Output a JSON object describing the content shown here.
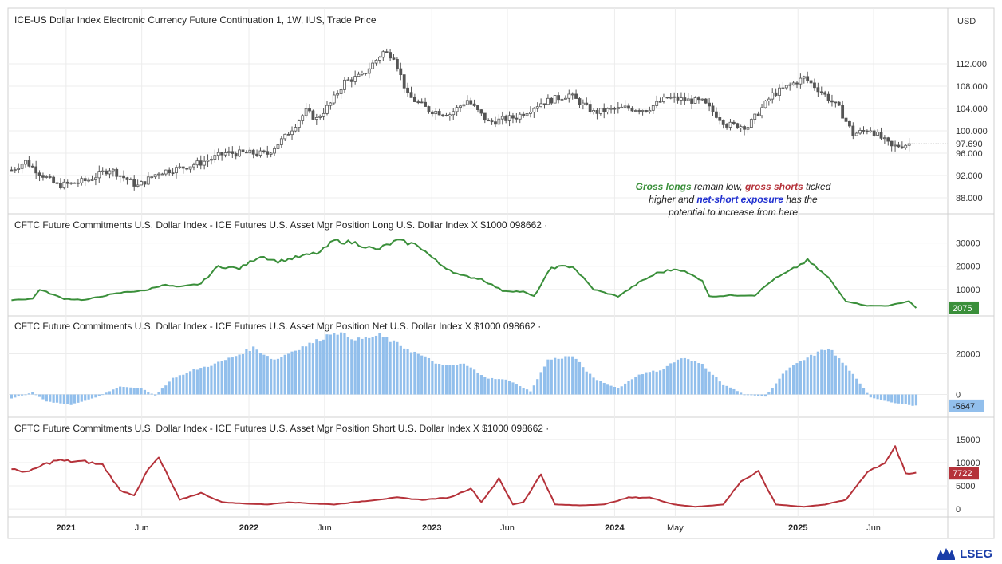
{
  "currency_button": "USD",
  "annotation": {
    "line1": [
      {
        "text": "Gross longs",
        "style": "green"
      },
      {
        "text": " remain low, ",
        "style": "plain"
      },
      {
        "text": "gross shorts",
        "style": "red"
      },
      {
        "text": " ticked",
        "style": "plain"
      }
    ],
    "line2": [
      {
        "text": "higher and ",
        "style": "plain"
      },
      {
        "text": "net-short exposure",
        "style": "blue"
      },
      {
        "text": " has the",
        "style": "plain"
      }
    ],
    "line3": [
      {
        "text": "potential to increase from here",
        "style": "plain"
      }
    ]
  },
  "logo_text": "LSEG",
  "colors": {
    "green": "#3a8f3a",
    "red": "#b5323a",
    "blue": "#1f2fd0",
    "bar": "#92bfec",
    "candle": "#555555",
    "grid": "#ececec"
  },
  "x_axis": {
    "ticks": [
      {
        "label": "2021",
        "date": "2021-01-01",
        "bold": true
      },
      {
        "label": "Jun",
        "date": "2021-06-01",
        "bold": false
      },
      {
        "label": "2022",
        "date": "2022-01-01",
        "bold": true
      },
      {
        "label": "Jun",
        "date": "2022-06-01",
        "bold": false
      },
      {
        "label": "2023",
        "date": "2023-01-01",
        "bold": true
      },
      {
        "label": "Jun",
        "date": "2023-06-01",
        "bold": false
      },
      {
        "label": "2024",
        "date": "2024-01-01",
        "bold": true
      },
      {
        "label": "May",
        "date": "2024-05-01",
        "bold": false
      },
      {
        "label": "2025",
        "date": "2025-01-01",
        "bold": true
      },
      {
        "label": "Jun",
        "date": "2025-06-01",
        "bold": false
      }
    ]
  },
  "chart_data": [
    {
      "type": "candlestick",
      "title": "ICE-US Dollar Index Electronic Currency Future Continuation 1, 1W, IUS, Trade Price",
      "ylim": [
        86,
        118
      ],
      "yticks": [
        "112.000",
        "108.000",
        "104.000",
        "100.000",
        "96.000",
        "92.000",
        "88.000"
      ],
      "last_value": "97.690",
      "x": [
        "2020-09-14",
        "2020-10-12",
        "2020-11-09",
        "2020-12-14",
        "2021-01-11",
        "2021-02-15",
        "2021-03-29",
        "2021-05-24",
        "2021-07-05",
        "2021-08-16",
        "2021-09-27",
        "2021-11-15",
        "2021-12-27",
        "2022-02-07",
        "2022-03-14",
        "2022-04-25",
        "2022-05-16",
        "2022-06-13",
        "2022-07-11",
        "2022-08-15",
        "2022-09-26",
        "2022-10-17",
        "2022-11-14",
        "2022-12-26",
        "2023-02-06",
        "2023-03-13",
        "2023-04-24",
        "2023-06-19",
        "2023-08-07",
        "2023-10-02",
        "2023-11-20",
        "2024-01-22",
        "2024-03-04",
        "2024-04-15",
        "2024-06-24",
        "2024-08-12",
        "2024-09-23",
        "2024-11-11",
        "2025-01-13",
        "2025-02-17",
        "2025-03-24",
        "2025-04-21",
        "2025-05-26",
        "2025-07-07",
        "2025-08-11"
      ],
      "close": [
        93.0,
        94.5,
        92.5,
        90.2,
        90.5,
        91.2,
        93.2,
        90.1,
        92.6,
        93.3,
        94.3,
        96.0,
        96.0,
        95.9,
        98.9,
        103.5,
        102.1,
        104.9,
        108.8,
        109.9,
        114.1,
        113.4,
        106.3,
        103.7,
        103.0,
        105.5,
        101.5,
        102.5,
        105.0,
        106.5,
        103.3,
        104.1,
        103.8,
        105.9,
        105.2,
        101.1,
        100.8,
        106.5,
        109.5,
        107.0,
        104.0,
        99.4,
        100.3,
        97.1,
        97.69
      ]
    },
    {
      "type": "line",
      "title": "CFTC Future Commitments U.S. Dollar Index - ICE Futures U.S. Asset Mgr Position Long U.S. Dollar Index X $1000 098662 ·",
      "ylim": [
        0,
        35000
      ],
      "yticks": [
        "30000",
        "20000",
        "10000"
      ],
      "last_value": "2075",
      "x": [
        "2020-09-14",
        "2020-10-26",
        "2020-11-09",
        "2020-12-28",
        "2021-02-08",
        "2021-03-22",
        "2021-05-03",
        "2021-06-07",
        "2021-07-12",
        "2021-08-16",
        "2021-09-27",
        "2021-11-01",
        "2021-12-13",
        "2022-01-24",
        "2022-02-28",
        "2022-04-11",
        "2022-05-23",
        "2022-06-20",
        "2022-08-01",
        "2022-09-12",
        "2022-10-24",
        "2022-12-05",
        "2023-01-16",
        "2023-02-27",
        "2023-04-10",
        "2023-05-22",
        "2023-07-03",
        "2023-07-24",
        "2023-08-28",
        "2023-10-09",
        "2023-11-20",
        "2024-01-08",
        "2024-02-19",
        "2024-03-25",
        "2024-05-06",
        "2024-06-24",
        "2024-07-08",
        "2024-08-26",
        "2024-10-07",
        "2024-11-11",
        "2024-12-16",
        "2025-01-20",
        "2025-03-03",
        "2025-04-07",
        "2025-05-19",
        "2025-06-30",
        "2025-08-11",
        "2025-08-25"
      ],
      "y": [
        5500,
        6000,
        10000,
        6000,
        5500,
        7500,
        9000,
        9500,
        12000,
        11000,
        12500,
        20000,
        19000,
        24500,
        22000,
        24000,
        26000,
        31000,
        30000,
        27000,
        31000,
        29000,
        21000,
        16000,
        14500,
        9500,
        9000,
        7000,
        19500,
        20000,
        10000,
        7000,
        13000,
        17000,
        19000,
        14000,
        7000,
        7500,
        7500,
        14000,
        18000,
        22500,
        15000,
        5000,
        3000,
        3000,
        5000,
        2075
      ]
    },
    {
      "type": "bar",
      "title": "CFTC Future Commitments U.S. Dollar Index - ICE Futures U.S. Asset Mgr Position Net U.S. Dollar Index X $1000 098662 ·",
      "ylim": [
        -10000,
        30000
      ],
      "yticks": [
        "20000",
        "0"
      ],
      "last_value": "-5647",
      "x": [
        "2020-09-14",
        "2020-10-26",
        "2020-11-23",
        "2021-01-11",
        "2021-03-01",
        "2021-04-19",
        "2021-05-31",
        "2021-06-28",
        "2021-08-02",
        "2021-09-13",
        "2021-10-25",
        "2021-12-06",
        "2022-01-10",
        "2022-02-21",
        "2022-04-04",
        "2022-05-23",
        "2022-06-20",
        "2022-08-08",
        "2022-09-19",
        "2022-10-31",
        "2022-12-12",
        "2023-01-23",
        "2023-03-06",
        "2023-04-24",
        "2023-06-05",
        "2023-07-17",
        "2023-08-21",
        "2023-10-09",
        "2023-11-20",
        "2024-01-08",
        "2024-02-19",
        "2024-04-01",
        "2024-05-13",
        "2024-06-24",
        "2024-08-05",
        "2024-09-16",
        "2024-10-28",
        "2024-12-09",
        "2025-01-20",
        "2025-03-03",
        "2025-04-14",
        "2025-05-26",
        "2025-07-07",
        "2025-08-25"
      ],
      "values": [
        -2000,
        1000,
        -3500,
        -5000,
        -1500,
        4000,
        3000,
        -500,
        8000,
        12000,
        15000,
        19000,
        23000,
        17000,
        22000,
        27000,
        31000,
        27000,
        29000,
        24000,
        19000,
        14000,
        15000,
        8000,
        7000,
        1500,
        17000,
        19000,
        8000,
        3000,
        10000,
        12000,
        18000,
        15000,
        5000,
        0,
        -1000,
        12000,
        18000,
        23000,
        12000,
        -1500,
        -4000,
        -5647
      ]
    },
    {
      "type": "line",
      "title": "CFTC Future Commitments U.S. Dollar Index - ICE Futures U.S. Asset Mgr Position Short U.S. Dollar Index X $1000 098662 ·",
      "ylim": [
        -1000,
        16000
      ],
      "yticks": [
        "15000",
        "10000",
        "5000",
        "0"
      ],
      "last_value": "7722",
      "x": [
        "2020-09-14",
        "2020-10-19",
        "2020-11-16",
        "2020-12-14",
        "2021-01-04",
        "2021-02-08",
        "2021-03-15",
        "2021-04-19",
        "2021-05-17",
        "2021-06-14",
        "2021-07-05",
        "2021-08-16",
        "2021-09-27",
        "2021-11-08",
        "2021-12-20",
        "2022-02-07",
        "2022-03-21",
        "2022-05-09",
        "2022-06-20",
        "2022-08-01",
        "2022-09-12",
        "2022-10-24",
        "2022-12-12",
        "2023-02-06",
        "2023-03-20",
        "2023-04-10",
        "2023-05-15",
        "2023-06-12",
        "2023-07-03",
        "2023-08-07",
        "2023-09-04",
        "2023-10-23",
        "2023-12-11",
        "2024-01-29",
        "2024-03-11",
        "2024-04-29",
        "2024-06-10",
        "2024-08-05",
        "2024-09-09",
        "2024-10-14",
        "2024-11-18",
        "2025-01-13",
        "2025-02-24",
        "2025-04-07",
        "2025-05-19",
        "2025-06-23",
        "2025-07-14",
        "2025-08-04",
        "2025-08-25"
      ],
      "y": [
        8500,
        8000,
        9500,
        10500,
        10300,
        10200,
        9500,
        4000,
        3000,
        8500,
        11000,
        2000,
        3500,
        1500,
        1200,
        1000,
        1500,
        1200,
        1000,
        1500,
        2000,
        2500,
        2000,
        2500,
        4500,
        1500,
        6500,
        1000,
        1500,
        7500,
        1000,
        800,
        1000,
        2500,
        2500,
        1000,
        500,
        1000,
        6000,
        8000,
        1000,
        500,
        1000,
        2000,
        8000,
        10000,
        13500,
        7500,
        7722
      ]
    }
  ]
}
